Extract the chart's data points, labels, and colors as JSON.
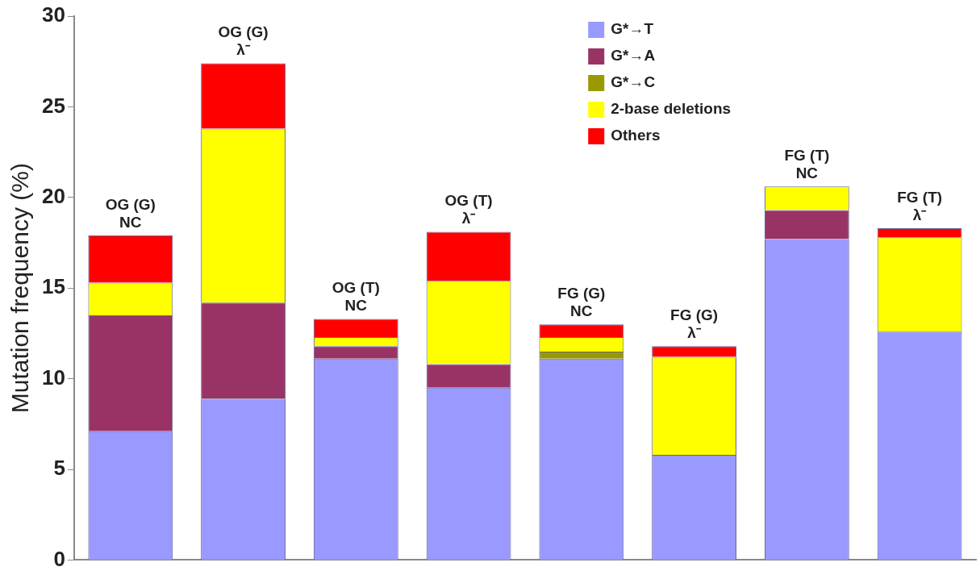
{
  "chart_data": {
    "type": "bar",
    "stacked": true,
    "categories": [
      "OG (G)\nNC",
      "OG (G)\nλ⁻",
      "OG (T)\nNC",
      "OG (T)\nλ⁻",
      "FG (G)\nNC",
      "FG (G)\nλ⁻",
      "FG (T)\nNC",
      "FG (T)\nλ⁻"
    ],
    "ylabel": "Mutation frequency (%)",
    "ylim": [
      0,
      30
    ],
    "yticks": [
      0,
      5,
      10,
      15,
      20,
      25,
      30
    ],
    "grid": false,
    "legend": "top right",
    "series": [
      {
        "name": "G*→T",
        "color": "#9999ff",
        "values": [
          7.1,
          8.9,
          11.1,
          9.5,
          11.1,
          5.8,
          17.7,
          12.6
        ]
      },
      {
        "name": "G*→A",
        "color": "#993366",
        "values": [
          6.4,
          5.3,
          0.7,
          1.3,
          null,
          null,
          1.6,
          null
        ]
      },
      {
        "name": "G*→C",
        "color": "#999900",
        "values": [
          null,
          null,
          null,
          null,
          0.4,
          null,
          null,
          null
        ]
      },
      {
        "name": "2-base deletions",
        "color": "#ffff00",
        "values": [
          1.8,
          9.6,
          0.5,
          4.6,
          0.8,
          5.4,
          1.3,
          5.2
        ]
      },
      {
        "name": "Others",
        "color": "#ff0000",
        "values": [
          2.6,
          3.6,
          1.0,
          2.7,
          0.7,
          0.6,
          null,
          0.5
        ]
      }
    ]
  }
}
